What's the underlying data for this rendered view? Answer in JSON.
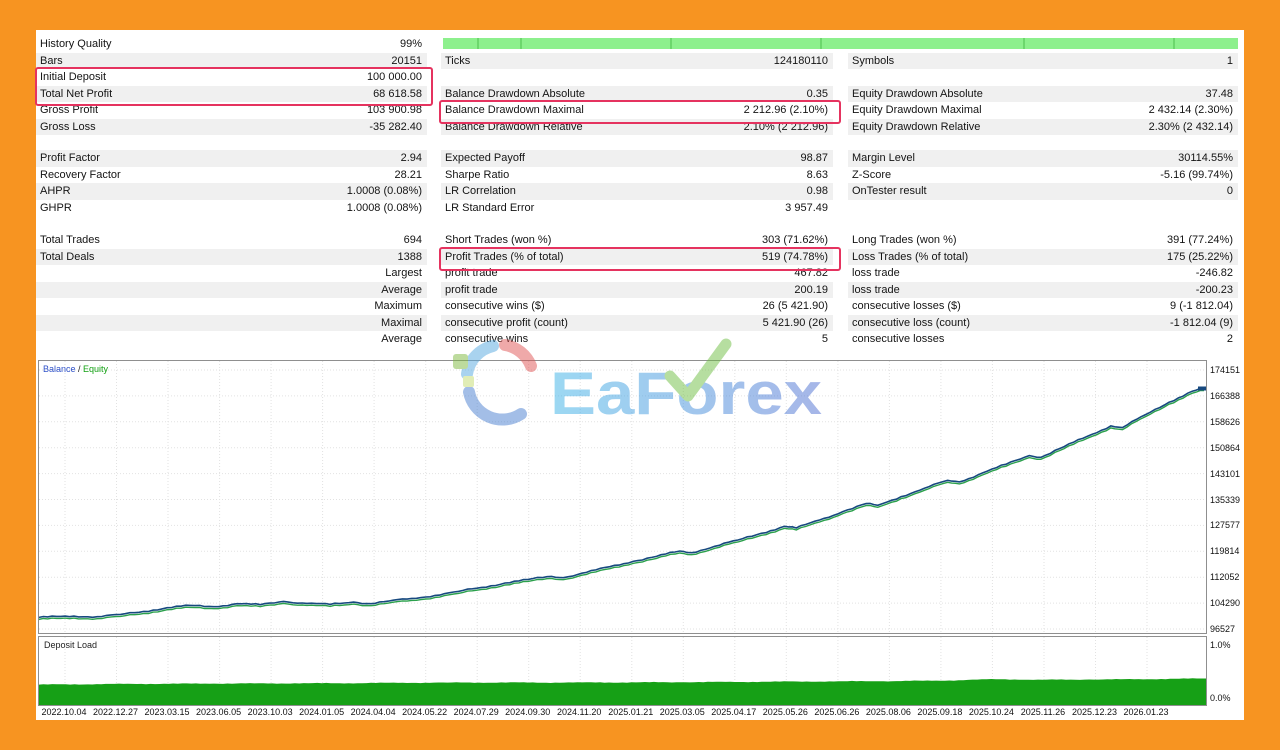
{
  "colors": {
    "frame": "#f79421",
    "stripe": "#f0f0f0",
    "highlight": "#e5335f",
    "progress": "#8df08d",
    "balance_line": "#17497f",
    "equity_line": "#2ba04c",
    "deposit_fill": "#16a016",
    "legend_balance": "#2d50c8",
    "legend_equity": "#12a112",
    "watermark_blue_start": "#3ab3e8",
    "watermark_blue_end": "#4f6fd2",
    "watermark_check": "#6fbe44"
  },
  "progress": {
    "dividers": [
      0.043,
      0.097,
      0.286,
      0.474,
      0.729,
      0.918
    ]
  },
  "stats": {
    "blocks": [
      {
        "rows": [
          [
            "History Quality",
            "99%",
            "",
            "",
            "",
            ""
          ],
          [
            "Bars",
            "20151",
            "Ticks",
            "124180110",
            "Symbols",
            "1"
          ],
          [
            "Initial Deposit",
            "100 000.00",
            "",
            "",
            "",
            ""
          ],
          [
            "Total Net Profit",
            "68 618.58",
            "Balance Drawdown Absolute",
            "0.35",
            "Equity Drawdown Absolute",
            "37.48"
          ],
          [
            "Gross Profit",
            "103 900.98",
            "Balance Drawdown Maximal",
            "2 212.96 (2.10%)",
            "Equity Drawdown Maximal",
            "2 432.14 (2.30%)"
          ],
          [
            "Gross Loss",
            "-35 282.40",
            "Balance Drawdown Relative",
            "2.10% (2 212.96)",
            "Equity Drawdown Relative",
            "2.30% (2 432.14)"
          ]
        ]
      },
      {
        "rows": [
          [
            "Profit Factor",
            "2.94",
            "Expected Payoff",
            "98.87",
            "Margin Level",
            "30114.55%"
          ],
          [
            "Recovery Factor",
            "28.21",
            "Sharpe Ratio",
            "8.63",
            "Z-Score",
            "-5.16 (99.74%)"
          ],
          [
            "AHPR",
            "1.0008 (0.08%)",
            "LR Correlation",
            "0.98",
            "OnTester result",
            "0"
          ],
          [
            "GHPR",
            "1.0008 (0.08%)",
            "LR Standard Error",
            "3 957.49",
            "",
            ""
          ]
        ]
      },
      {
        "rows": [
          [
            "Total Trades",
            "694",
            "Short Trades (won %)",
            "303 (71.62%)",
            "Long Trades (won %)",
            "391 (77.24%)"
          ],
          [
            "Total Deals",
            "1388",
            "Profit Trades (% of total)",
            "519 (74.78%)",
            "Loss Trades (% of total)",
            "175 (25.22%)"
          ],
          [
            "",
            "Largest",
            "profit trade",
            "467.82",
            "loss trade",
            "-246.82"
          ],
          [
            "",
            "Average",
            "profit trade",
            "200.19",
            "loss trade",
            "-200.23"
          ],
          [
            "",
            "Maximum",
            "consecutive wins ($)",
            "26 (5 421.90)",
            "consecutive losses ($)",
            "9 (-1 812.04)"
          ],
          [
            "",
            "Maximal",
            "consecutive profit (count)",
            "5 421.90 (26)",
            "consecutive loss (count)",
            "-1 812.04 (9)"
          ],
          [
            "",
            "Average",
            "consecutive wins",
            "5",
            "consecutive losses",
            "2"
          ]
        ]
      }
    ]
  },
  "watermark": {
    "text": "EaForex"
  },
  "chart_data": {
    "type": "line",
    "legend": {
      "balance_label": "Balance",
      "separator": " / ",
      "equity_label": "Equity"
    },
    "initial_balance": 100000,
    "final_balance": 168618.58,
    "y_ticks": [
      174151,
      166388,
      158626,
      150864,
      143101,
      135339,
      127577,
      119814,
      112052,
      104290,
      96527
    ],
    "x_ticks": [
      "2022.10.04",
      "2022.12.27",
      "2023.03.15",
      "2023.06.05",
      "2023.10.03",
      "2024.01.05",
      "2024.04.04",
      "2024.05.22",
      "2024.07.29",
      "2024.09.30",
      "2024.11.20",
      "2025.01.21",
      "2025.03.05",
      "2025.04.17",
      "2025.05.26",
      "2025.06.26",
      "2025.08.06",
      "2025.09.18",
      "2025.10.24",
      "2025.11.26",
      "2025.12.23",
      "2026.01.23"
    ],
    "series": [
      {
        "name": "Balance",
        "anchors": [
          [
            0,
            100000
          ],
          [
            0.03,
            100400
          ],
          [
            0.05,
            100200
          ],
          [
            0.07,
            100900
          ],
          [
            0.09,
            101800
          ],
          [
            0.11,
            102900
          ],
          [
            0.13,
            103600
          ],
          [
            0.15,
            103200
          ],
          [
            0.17,
            104100
          ],
          [
            0.19,
            103800
          ],
          [
            0.21,
            104800
          ],
          [
            0.23,
            104200
          ],
          [
            0.25,
            103900
          ],
          [
            0.27,
            104600
          ],
          [
            0.285,
            104100
          ],
          [
            0.3,
            104900
          ],
          [
            0.32,
            105700
          ],
          [
            0.34,
            106600
          ],
          [
            0.36,
            107800
          ],
          [
            0.38,
            109000
          ],
          [
            0.4,
            110300
          ],
          [
            0.42,
            111400
          ],
          [
            0.44,
            112300
          ],
          [
            0.45,
            111900
          ],
          [
            0.47,
            113500
          ],
          [
            0.49,
            115200
          ],
          [
            0.51,
            116800
          ],
          [
            0.53,
            118300
          ],
          [
            0.55,
            119900
          ],
          [
            0.56,
            119400
          ],
          [
            0.58,
            121300
          ],
          [
            0.6,
            123200
          ],
          [
            0.62,
            125200
          ],
          [
            0.64,
            127300
          ],
          [
            0.65,
            126800
          ],
          [
            0.67,
            129200
          ],
          [
            0.69,
            131700
          ],
          [
            0.71,
            134100
          ],
          [
            0.72,
            133600
          ],
          [
            0.74,
            136200
          ],
          [
            0.76,
            138700
          ],
          [
            0.78,
            141100
          ],
          [
            0.79,
            140600
          ],
          [
            0.81,
            143300
          ],
          [
            0.83,
            145900
          ],
          [
            0.85,
            148500
          ],
          [
            0.86,
            148000
          ],
          [
            0.88,
            151200
          ],
          [
            0.9,
            154300
          ],
          [
            0.92,
            157400
          ],
          [
            0.93,
            156900
          ],
          [
            0.95,
            160800
          ],
          [
            0.97,
            164500
          ],
          [
            0.99,
            167800
          ],
          [
            1,
            168618
          ]
        ]
      },
      {
        "name": "Equity"
      }
    ],
    "deposit_load": {
      "label": "Deposit Load",
      "max_label": "1.0%",
      "min_label": "0.0%",
      "anchors": [
        [
          0,
          0.3
        ],
        [
          0.08,
          0.31
        ],
        [
          0.15,
          0.315
        ],
        [
          0.25,
          0.32
        ],
        [
          0.35,
          0.33
        ],
        [
          0.45,
          0.33
        ],
        [
          0.55,
          0.335
        ],
        [
          0.65,
          0.345
        ],
        [
          0.72,
          0.35
        ],
        [
          0.78,
          0.36
        ],
        [
          0.82,
          0.38
        ],
        [
          0.86,
          0.37
        ],
        [
          0.9,
          0.375
        ],
        [
          0.95,
          0.38
        ],
        [
          1,
          0.39
        ]
      ]
    }
  }
}
